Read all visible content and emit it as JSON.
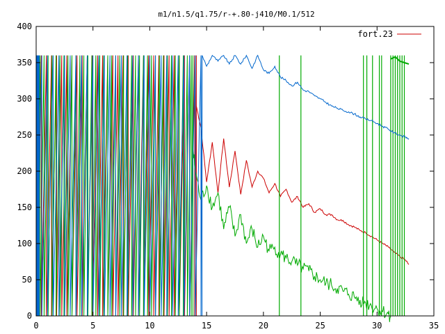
{
  "chart_data": {
    "type": "line",
    "title": "m1/n1.5/q1.75/r-+.80-j410/M0.1/512",
    "xlabel": "",
    "ylabel": "",
    "xlim": [
      0,
      35
    ],
    "ylim": [
      0,
      400
    ],
    "x_ticks": [
      0,
      5,
      10,
      15,
      20,
      25,
      30,
      35
    ],
    "y_ticks": [
      0,
      50,
      100,
      150,
      200,
      250,
      300,
      350,
      400
    ],
    "grid": false,
    "legend_position": "top-right",
    "legend": [
      "fort.23"
    ],
    "series": [
      {
        "name": "fort.23",
        "color": "#cc0000",
        "wrap_range": [
          0,
          360
        ],
        "wrap_segment": {
          "x_start": 0,
          "x_end": 14.1,
          "period": 0.45
        },
        "x": [
          14.1,
          14.5,
          15.0,
          15.5,
          16.0,
          16.5,
          17.0,
          17.5,
          18.0,
          18.5,
          19.0,
          19.5,
          20.0,
          20.5,
          21.0,
          21.5,
          22.0,
          22.5,
          23.0,
          23.5,
          24.0,
          24.5,
          25.0,
          25.5,
          26.0,
          26.5,
          27.0,
          27.5,
          28.0,
          28.5,
          29.0,
          29.5,
          30.0,
          30.5,
          31.0,
          31.5,
          32.0,
          32.5,
          32.8
        ],
        "y": [
          290,
          260,
          185,
          240,
          170,
          245,
          178,
          228,
          168,
          215,
          178,
          200,
          190,
          170,
          183,
          165,
          175,
          157,
          165,
          150,
          155,
          143,
          148,
          140,
          140,
          133,
          132,
          126,
          123,
          118,
          115,
          110,
          105,
          100,
          95,
          88,
          82,
          77,
          71
        ]
      },
      {
        "name": "",
        "color": "#00aa00",
        "wrap_range": [
          0,
          360
        ],
        "wrap_segment": {
          "x_start": 0,
          "x_end": 13.8,
          "period": 0.35
        },
        "x": [
          13.8,
          14.0,
          14.5,
          15.0,
          15.5,
          16.0,
          16.5,
          17.0,
          17.5,
          18.0,
          18.5,
          19.0,
          19.5,
          20.0,
          20.5,
          21.0,
          21.5,
          22.0,
          22.5,
          23.0,
          23.5,
          24.0,
          24.5,
          25.0,
          25.5,
          26.0,
          26.5,
          27.0,
          27.5,
          28.0,
          28.5,
          29.0,
          29.5,
          30.0,
          30.5,
          31.0,
          31.2
        ],
        "y": [
          230,
          200,
          160,
          180,
          150,
          170,
          120,
          150,
          110,
          140,
          100,
          120,
          95,
          110,
          90,
          95,
          85,
          80,
          75,
          70,
          65,
          62,
          55,
          50,
          45,
          42,
          38,
          34,
          30,
          26,
          22,
          18,
          14,
          10,
          6,
          3,
          0
        ],
        "spikes_x": [
          21.4,
          23.3,
          28.8,
          29.1,
          29.6,
          30.2,
          30.4,
          31.2,
          31.4,
          31.6,
          31.8,
          32.0,
          32.2,
          32.4
        ],
        "tail": {
          "x": [
            31.2,
            31.6,
            32.0,
            32.4,
            32.8
          ],
          "y": [
            355,
            358,
            352,
            350,
            348
          ]
        }
      },
      {
        "name": "",
        "color": "#0066cc",
        "wrap_range": [
          0,
          360
        ],
        "wrap_segment": {
          "x_start": 0,
          "x_end": 14.6,
          "period": 0.5
        },
        "x": [
          14.6,
          15.0,
          15.5,
          16.0,
          16.5,
          17.0,
          17.5,
          18.0,
          18.5,
          19.0,
          19.5,
          20.0,
          20.5,
          21.0,
          21.5,
          22.0,
          22.5,
          23.0,
          23.5,
          24.0,
          24.5,
          25.0,
          25.5,
          26.0,
          26.5,
          27.0,
          27.5,
          28.0,
          28.5,
          29.0,
          29.5,
          30.0,
          30.5,
          31.0,
          31.5,
          32.0,
          32.5,
          32.8
        ],
        "y": [
          360,
          345,
          360,
          352,
          360,
          348,
          360,
          348,
          360,
          342,
          360,
          340,
          335,
          345,
          330,
          325,
          318,
          323,
          312,
          310,
          304,
          300,
          295,
          290,
          287,
          284,
          282,
          279,
          275,
          272,
          270,
          266,
          262,
          258,
          253,
          250,
          247,
          245
        ],
        "dense_band_x": [
          0,
          0.3
        ]
      }
    ]
  }
}
